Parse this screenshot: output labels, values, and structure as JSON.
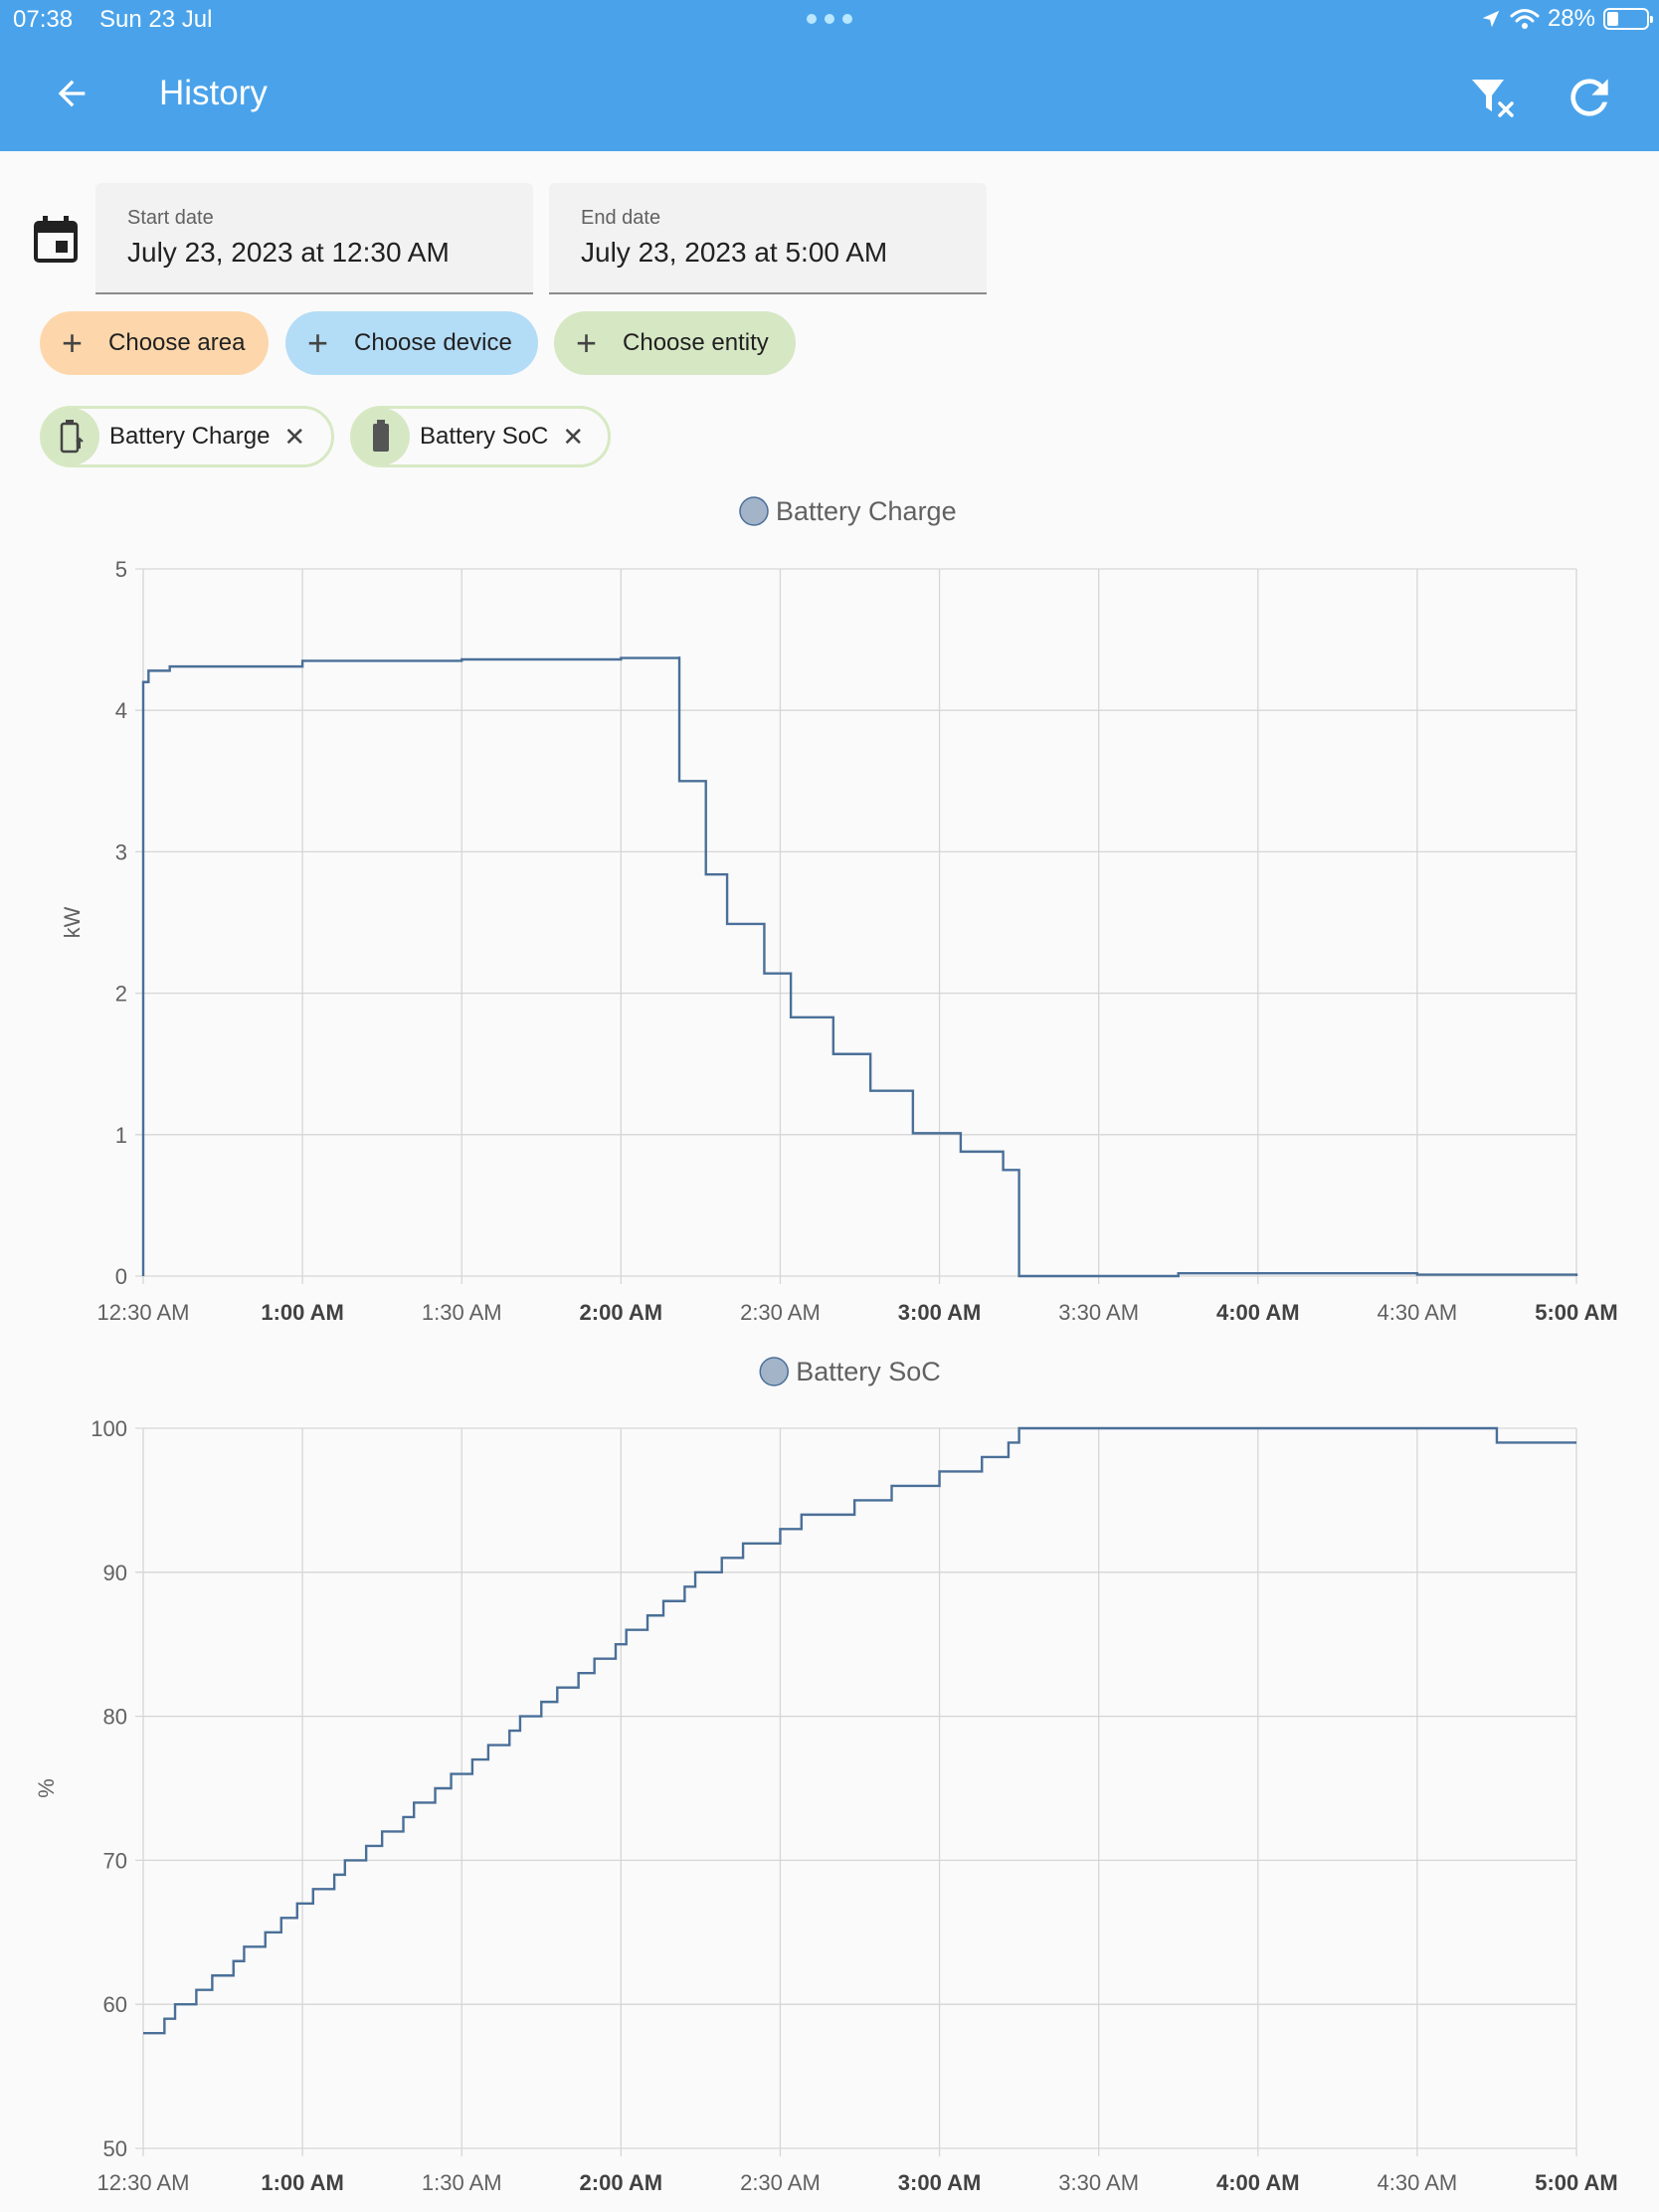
{
  "status": {
    "time": "07:38",
    "date": "Sun 23 Jul",
    "battery_pct": "28%",
    "battery_level": 0.28
  },
  "appbar": {
    "title": "History"
  },
  "dates": {
    "start_label": "Start date",
    "start_value": "July 23, 2023 at 12:30 AM",
    "end_label": "End date",
    "end_value": "July 23, 2023 at 5:00 AM"
  },
  "chips": {
    "area": "Choose area",
    "device": "Choose device",
    "entity": "Choose entity"
  },
  "entities": {
    "charge": "Battery Charge",
    "soc": "Battery SoC"
  },
  "colors": {
    "line": "#4a6f98",
    "legend_fill": "#a3b4c9",
    "appbar": "#4aa3ea"
  },
  "chart_data": [
    {
      "type": "line",
      "title": "Battery Charge",
      "ylabel": "kW",
      "xlabel": "",
      "ylim": [
        0,
        5
      ],
      "yticks": [
        "0",
        "1",
        "2",
        "3",
        "4",
        "5"
      ],
      "xticks": [
        {
          "label": "12:30 AM",
          "bold": false
        },
        {
          "label": "1:00 AM",
          "bold": true
        },
        {
          "label": "1:30 AM",
          "bold": false
        },
        {
          "label": "2:00 AM",
          "bold": true
        },
        {
          "label": "2:30 AM",
          "bold": false
        },
        {
          "label": "3:00 AM",
          "bold": true
        },
        {
          "label": "3:30 AM",
          "bold": false
        },
        {
          "label": "4:00 AM",
          "bold": true
        },
        {
          "label": "4:30 AM",
          "bold": false
        },
        {
          "label": "5:00 AM",
          "bold": true
        }
      ],
      "xlim": [
        "00:30",
        "05:00"
      ],
      "grid": true,
      "legend": "top-center",
      "series": [
        {
          "name": "Battery Charge",
          "step": true,
          "points": [
            [
              "00:30",
              0
            ],
            [
              "00:30",
              4.2
            ],
            [
              "00:31",
              4.28
            ],
            [
              "00:35",
              4.31
            ],
            [
              "01:00",
              4.35
            ],
            [
              "01:30",
              4.36
            ],
            [
              "02:00",
              4.37
            ],
            [
              "02:11",
              4.38
            ],
            [
              "02:11",
              3.5
            ],
            [
              "02:16",
              3.5
            ],
            [
              "02:16",
              2.84
            ],
            [
              "02:20",
              2.84
            ],
            [
              "02:20",
              2.49
            ],
            [
              "02:27",
              2.49
            ],
            [
              "02:27",
              2.14
            ],
            [
              "02:32",
              2.14
            ],
            [
              "02:32",
              1.83
            ],
            [
              "02:40",
              1.83
            ],
            [
              "02:40",
              1.57
            ],
            [
              "02:47",
              1.57
            ],
            [
              "02:47",
              1.31
            ],
            [
              "02:55",
              1.31
            ],
            [
              "02:55",
              1.01
            ],
            [
              "03:04",
              1.01
            ],
            [
              "03:04",
              0.88
            ],
            [
              "03:12",
              0.88
            ],
            [
              "03:12",
              0.75
            ],
            [
              "03:15",
              0.75
            ],
            [
              "03:15",
              0.0
            ],
            [
              "03:45",
              0.02
            ],
            [
              "04:00",
              0.02
            ],
            [
              "04:30",
              0.01
            ],
            [
              "05:00",
              0.0
            ]
          ]
        }
      ]
    },
    {
      "type": "line",
      "title": "Battery SoC",
      "ylabel": "%",
      "xlabel": "",
      "ylim": [
        50,
        100
      ],
      "yticks": [
        "50",
        "60",
        "70",
        "80",
        "90",
        "100"
      ],
      "xticks": [
        {
          "label": "12:30 AM",
          "bold": false
        },
        {
          "label": "1:00 AM",
          "bold": true
        },
        {
          "label": "1:30 AM",
          "bold": false
        },
        {
          "label": "2:00 AM",
          "bold": true
        },
        {
          "label": "2:30 AM",
          "bold": false
        },
        {
          "label": "3:00 AM",
          "bold": true
        },
        {
          "label": "3:30 AM",
          "bold": false
        },
        {
          "label": "4:00 AM",
          "bold": true
        },
        {
          "label": "4:30 AM",
          "bold": false
        },
        {
          "label": "5:00 AM",
          "bold": true
        }
      ],
      "xlim": [
        "00:30",
        "05:00"
      ],
      "grid": true,
      "legend": "top-center",
      "series": [
        {
          "name": "Battery SoC",
          "step": true,
          "points": [
            [
              "00:30",
              58
            ],
            [
              "00:34",
              59
            ],
            [
              "00:36",
              60
            ],
            [
              "00:40",
              61
            ],
            [
              "00:43",
              62
            ],
            [
              "00:47",
              63
            ],
            [
              "00:49",
              64
            ],
            [
              "00:53",
              65
            ],
            [
              "00:56",
              66
            ],
            [
              "00:59",
              67
            ],
            [
              "01:02",
              68
            ],
            [
              "01:06",
              69
            ],
            [
              "01:08",
              70
            ],
            [
              "01:12",
              71
            ],
            [
              "01:15",
              72
            ],
            [
              "01:19",
              73
            ],
            [
              "01:21",
              74
            ],
            [
              "01:25",
              75
            ],
            [
              "01:28",
              76
            ],
            [
              "01:32",
              77
            ],
            [
              "01:35",
              78
            ],
            [
              "01:39",
              79
            ],
            [
              "01:41",
              80
            ],
            [
              "01:45",
              81
            ],
            [
              "01:48",
              82
            ],
            [
              "01:52",
              83
            ],
            [
              "01:55",
              84
            ],
            [
              "01:59",
              85
            ],
            [
              "02:01",
              86
            ],
            [
              "02:05",
              87
            ],
            [
              "02:08",
              88
            ],
            [
              "02:12",
              89
            ],
            [
              "02:14",
              90
            ],
            [
              "02:19",
              91
            ],
            [
              "02:23",
              92
            ],
            [
              "02:30",
              93
            ],
            [
              "02:34",
              94
            ],
            [
              "02:44",
              95
            ],
            [
              "02:51",
              96
            ],
            [
              "03:00",
              97
            ],
            [
              "03:08",
              98
            ],
            [
              "03:13",
              99
            ],
            [
              "03:15",
              100
            ],
            [
              "04:45",
              99
            ],
            [
              "05:00",
              99
            ]
          ]
        }
      ]
    }
  ]
}
